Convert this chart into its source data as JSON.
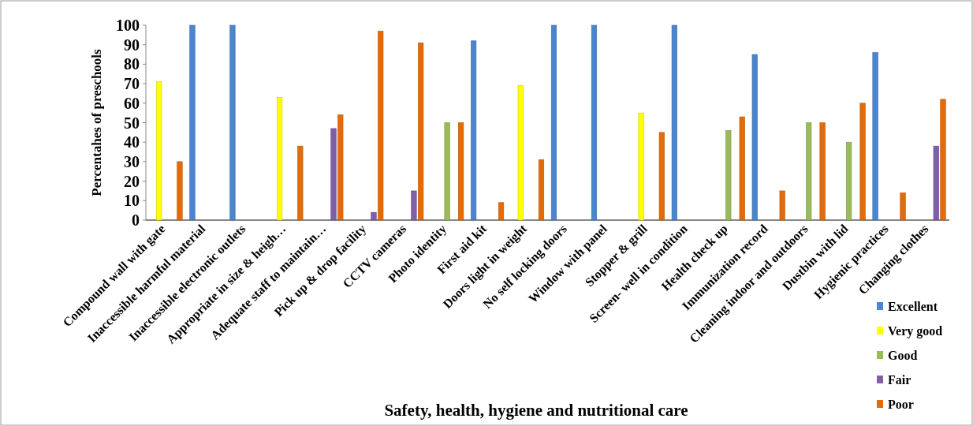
{
  "chart_data": {
    "type": "bar",
    "xlabel": "Safety, health, hygiene and nutritional  care",
    "ylabel": "Percentahes of preschools",
    "categories": [
      "Compound wall with gate",
      "Inaccessible harmful material",
      "Inaccessible electronic outlets",
      "Appropriate  in size & heigh…",
      "Adequate staff to maintain…",
      "Pick up & drop facility",
      "CCTV cameras",
      "Photo identity",
      "First aid kit",
      "Doors light in weight",
      "No self locking doors",
      "Window with panel",
      "Stopper & grill",
      "Screen- well in condition",
      "Health check up",
      "Immunization record",
      "Cleaning indoor and outdoors",
      "Dustbin with lid",
      "Hygienic practices",
      "Changing clothes"
    ],
    "series": [
      {
        "name": "Excellent",
        "color": "#4a86d0",
        "values": [
          0,
          100,
          100,
          0,
          0,
          0,
          0,
          0,
          92,
          0,
          100,
          100,
          0,
          100,
          0,
          85,
          0,
          0,
          86,
          0
        ]
      },
      {
        "name": "Very good",
        "color": "#ffff00",
        "values": [
          71,
          0,
          0,
          63,
          0,
          0,
          0,
          0,
          0,
          69,
          0,
          0,
          55,
          0,
          0,
          0,
          0,
          0,
          0,
          0
        ]
      },
      {
        "name": "Good",
        "color": "#9bbb59",
        "values": [
          0,
          0,
          0,
          0,
          0,
          0,
          0,
          50,
          0,
          0,
          0,
          0,
          0,
          0,
          46,
          0,
          50,
          40,
          0,
          0
        ]
      },
      {
        "name": "Fair",
        "color": "#7f5fa8",
        "values": [
          0,
          0,
          0,
          0,
          47,
          4,
          15,
          0,
          0,
          0,
          0,
          0,
          0,
          0,
          0,
          0,
          0,
          0,
          0,
          38
        ]
      },
      {
        "name": "Poor",
        "color": "#e36c0a",
        "values": [
          30,
          0,
          0,
          38,
          54,
          97,
          91,
          50,
          9,
          31,
          0,
          0,
          45,
          0,
          53,
          15,
          50,
          60,
          14,
          62
        ]
      }
    ],
    "ylim": [
      0,
      100
    ],
    "yticks": [
      0,
      10,
      20,
      30,
      40,
      50,
      60,
      70,
      80,
      90,
      100
    ],
    "legend": "bottom right"
  }
}
